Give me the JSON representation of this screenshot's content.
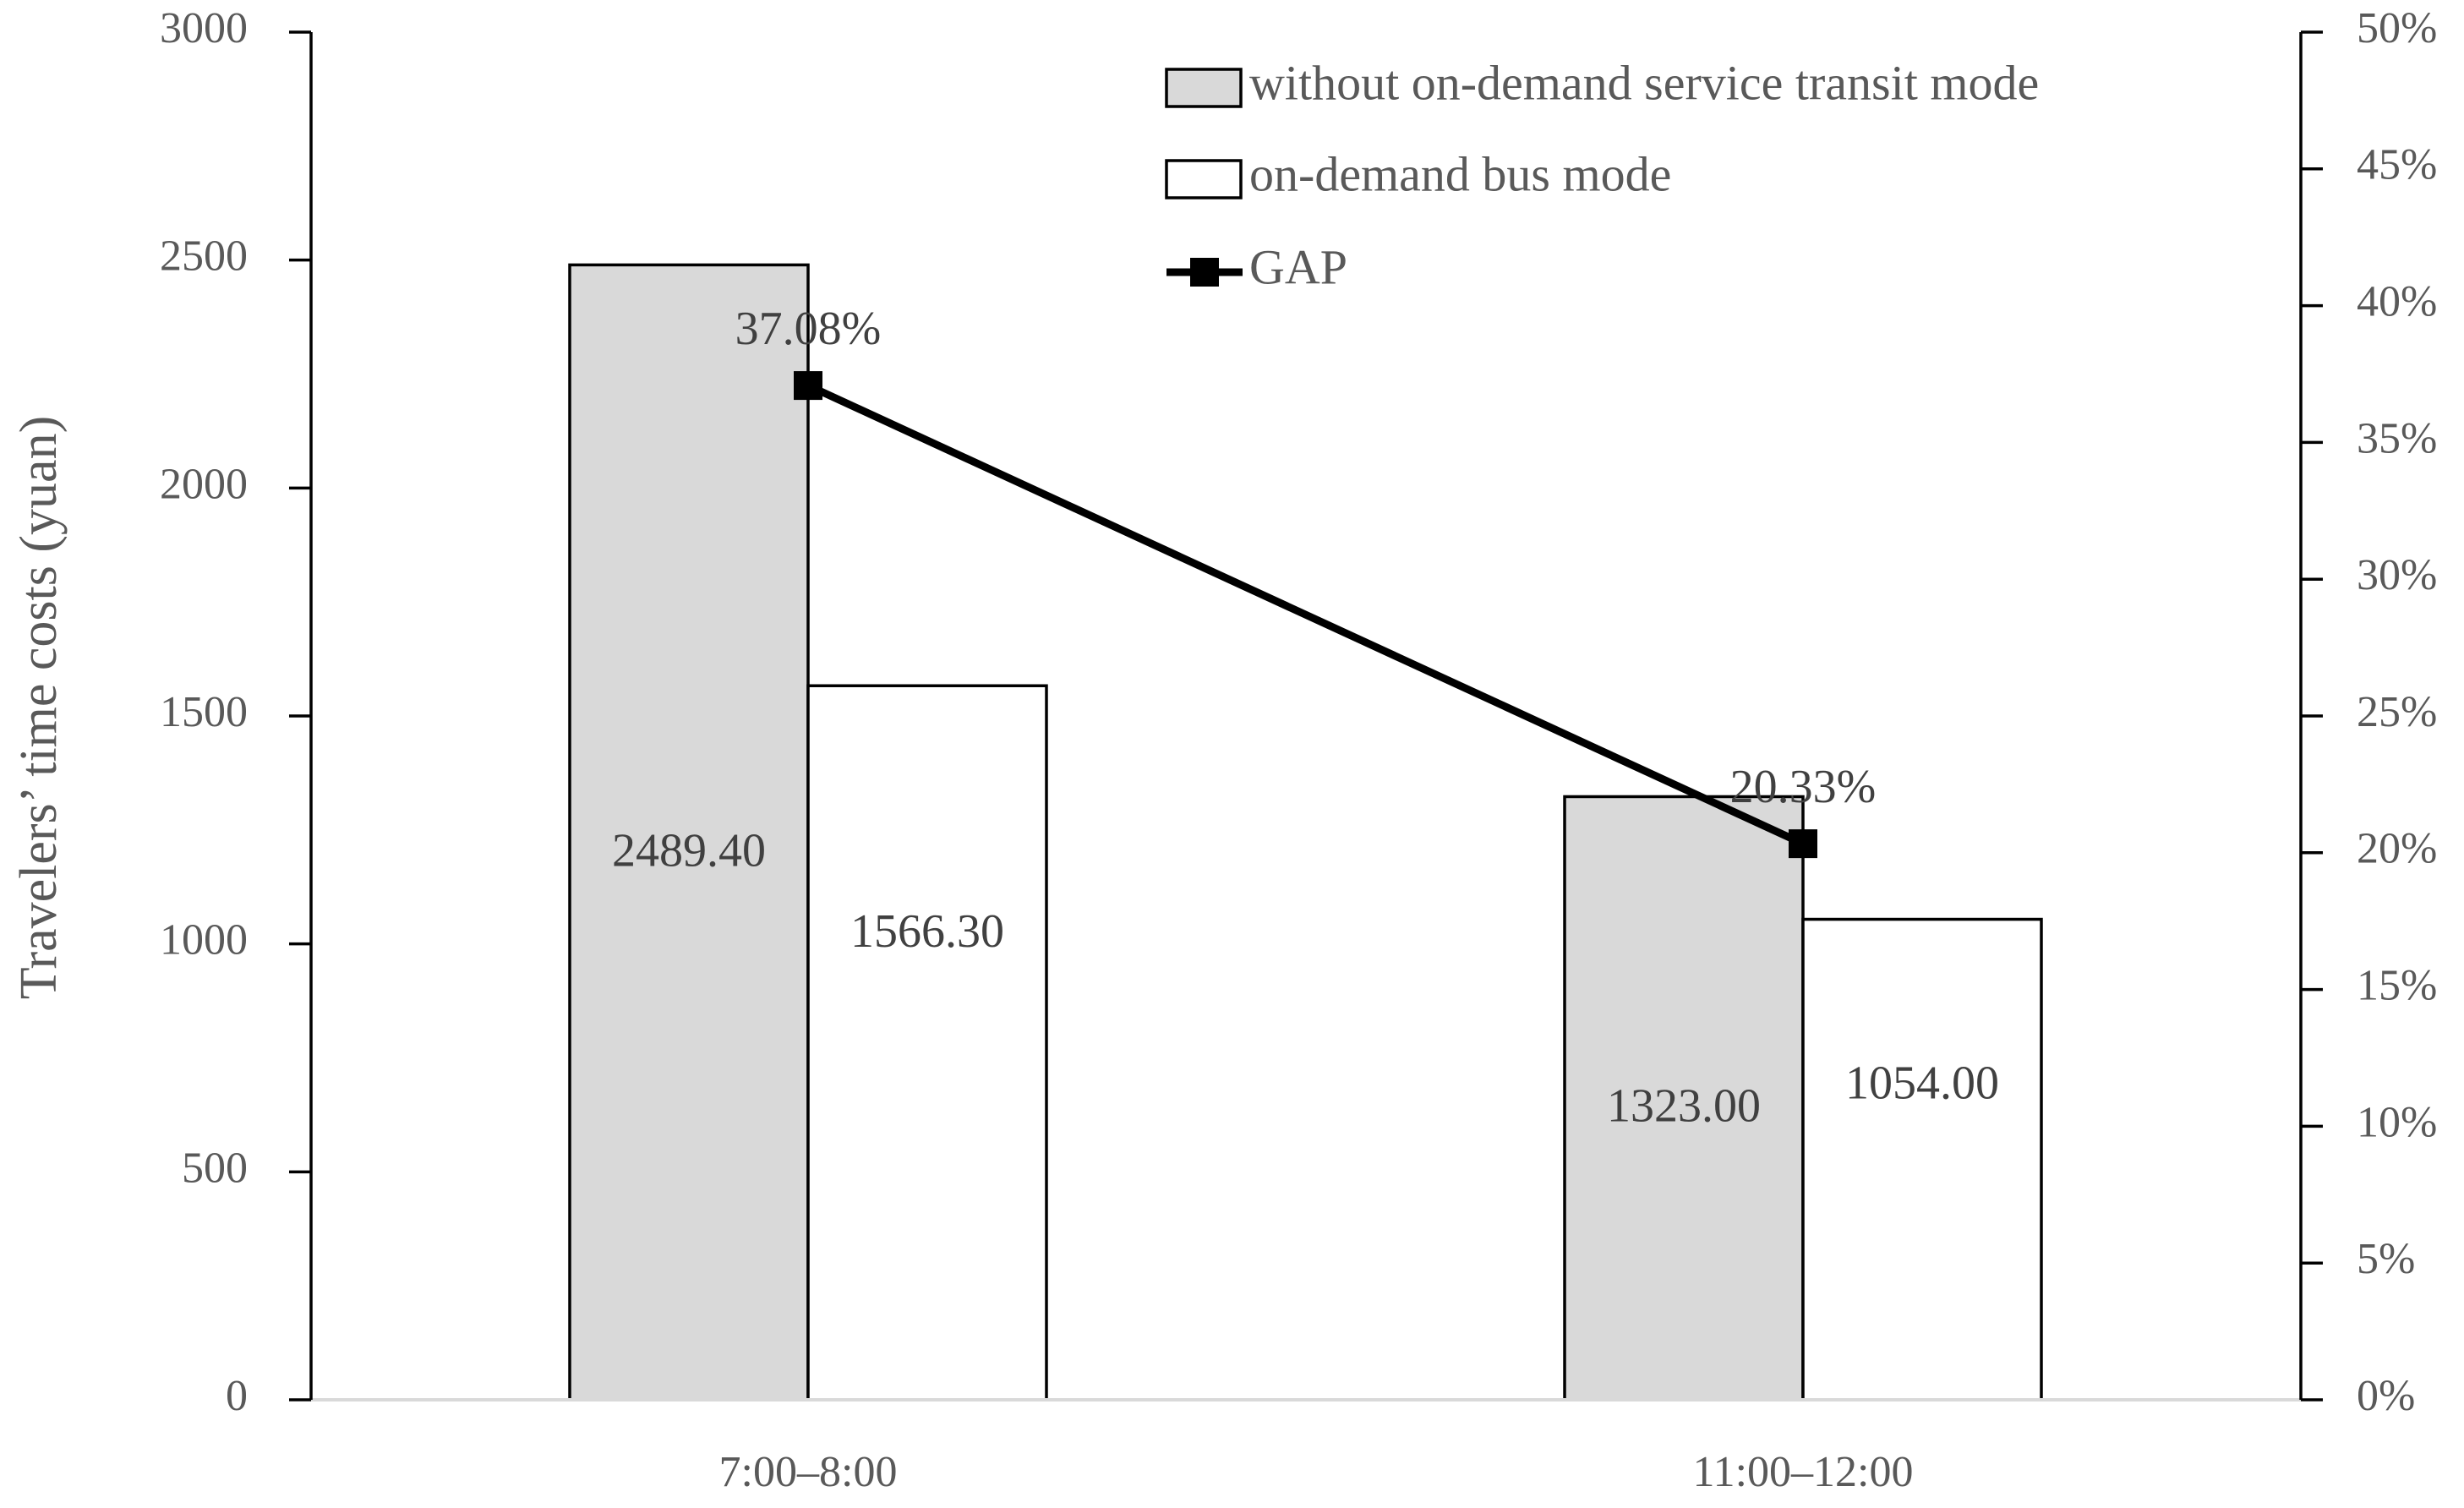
{
  "chart_data": {
    "type": "bar",
    "categories": [
      "7:00–8:00",
      "11:00–12:00"
    ],
    "series": [
      {
        "name": "without on-demand service transit mode",
        "values": [
          2489.4,
          1323.0
        ],
        "labels": [
          "2489.40",
          "1323.00"
        ],
        "color": "#d9d9d9",
        "axis": "left"
      },
      {
        "name": "on-demand bus mode",
        "values": [
          1566.3,
          1054.0
        ],
        "labels": [
          "1566.30",
          "1054.00"
        ],
        "color": "#ffffff",
        "axis": "left"
      },
      {
        "name": "GAP",
        "type": "line",
        "values": [
          37.08,
          20.33
        ],
        "labels": [
          "37.08%",
          "20.33%"
        ],
        "color": "#000000",
        "axis": "right",
        "marker": "square"
      }
    ],
    "ylabel": "Travelers’ time costs (yuan)",
    "ylim": [
      0,
      3000
    ],
    "yticks": [
      "0",
      "500",
      "1000",
      "1500",
      "2000",
      "2500",
      "3000"
    ],
    "y2lim": [
      0,
      50
    ],
    "y2ticks": [
      "0%",
      "5%",
      "10%",
      "15%",
      "20%",
      "25%",
      "30%",
      "35%",
      "40%",
      "45%",
      "50%"
    ],
    "legend_position": "top-right",
    "grid": false
  }
}
